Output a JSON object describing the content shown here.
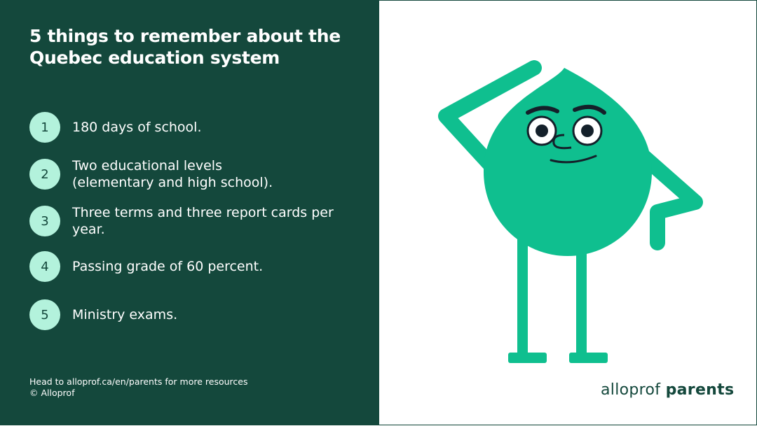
{
  "title": "5 things to remember about the Quebec education system",
  "items": [
    {
      "number": "1",
      "text": "180 days of school."
    },
    {
      "number": "2",
      "text": "Two educational levels (elementary and high school)."
    },
    {
      "number": "3",
      "text": "Three terms and three report cards per year."
    },
    {
      "number": "4",
      "text": "Passing grade of 60 percent."
    },
    {
      "number": "5",
      "text": "Ministry exams."
    }
  ],
  "footer": {
    "line1": "Head to alloprof.ca/en/parents for more resources",
    "line2": "© Alloprof"
  },
  "logo": {
    "part1": "alloprof",
    "part2": "parents"
  },
  "colors": {
    "panel": "#14483c",
    "badge": "#b3f2dc",
    "character": "#0fbf8f"
  }
}
